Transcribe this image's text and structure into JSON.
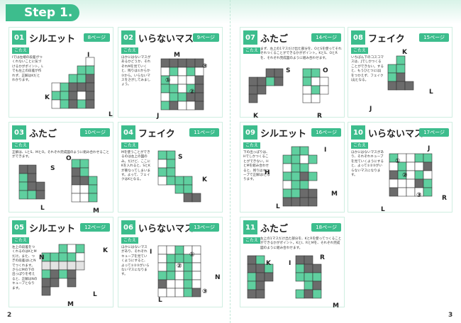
{
  "header": {
    "step": "Step 1."
  },
  "pages": [
    "2",
    "3"
  ],
  "panels": [
    {
      "number": "01",
      "title": "シルエット",
      "page": "8ページ",
      "tag": "こたえ",
      "text": "Iでは左端の段差がつくれないことに気づけるかがポイント。Lでも左上の段差が作れず、正解はKだとわかります。",
      "labels": [
        "I",
        "K",
        "L"
      ]
    },
    {
      "number": "02",
      "title": "いらないマス",
      "page": "9ページ",
      "tag": "こたえ",
      "text": "ほかにはないマスがあるかどうか、それぞれMを見ていくと、残りは①からか③から。いらないマスをさがしてみましょう。",
      "labels": [
        "M",
        "①",
        "③",
        "②",
        "J"
      ]
    },
    {
      "number": "03",
      "title": "ふたご",
      "page": "10ページ",
      "tag": "こたえ",
      "text": "正解は、LとS、MとO。それぞれ完成図のように組み合わせることができます。",
      "labels": [
        "S",
        "O",
        "L",
        "M"
      ]
    },
    {
      "number": "04",
      "title": "フェイク",
      "page": "11ページ",
      "tag": "こたえ",
      "text": "Mを使うことができるのは左上の図のみ。だけど、ここにKを入れると、SとKが重なってしまいます。よって、フェイクはKとなる。",
      "labels": [
        "S",
        "K"
      ]
    },
    {
      "number": "05",
      "title": "シルエット",
      "page": "12ページ",
      "tag": "こたえ",
      "text": "左上の段差をつくれるのはKとMだけ。また、つぎの段差はLとNでつくれます。さらにMの下の出っぱりを考えると、正解はNのキューブとなります。",
      "labels": [
        "N",
        "K",
        "L",
        "M"
      ]
    },
    {
      "number": "06",
      "title": "いらないマス",
      "page": "13ページ",
      "tag": "こたえ",
      "text": "ほかにはないマスがあり、それぞれキューブを見ていくようにすると、よって①②③がいらないマスになります。",
      "labels": [
        "I",
        "①",
        "②",
        "③",
        "N",
        "L"
      ]
    },
    {
      "number": "07",
      "title": "ふたご",
      "page": "14ページ",
      "tag": "こたえ",
      "text": "まず、左上の1マスだけ出た部分を、OとSを使ってそれぞれつくることができるかがポイント。KとS、OとRを、それぞれ完成図のように組み合わせます。",
      "labels": [
        "S",
        "O",
        "K",
        "R"
      ]
    },
    {
      "number": "08",
      "title": "フェイク",
      "page": "15ページ",
      "tag": "こたえ",
      "text": "いちばん下のコスコマスは、Jでしかつくることができない。すると、もうひとつにはJをつかえず、フェイクはJとなる。",
      "labels": [
        "K",
        "L",
        "J"
      ]
    },
    {
      "number": "09",
      "title": "シルエット",
      "page": "16ページ",
      "tag": "こたえ",
      "text": "下の出っぱりは、Hでしかつくることができない。H とMを組み合わせると、残りはキューブで正解はIとなります。",
      "labels": [
        "I",
        "H",
        "M",
        "L"
      ]
    },
    {
      "number": "10",
      "title": "いらないマス",
      "page": "17ページ",
      "tag": "こたえ",
      "text": "ほかにはないマスがあり、それぞれキューブを見ていくようにすると、よって①②③がいらないマスになります。",
      "labels": [
        "J",
        "①",
        "②",
        "③",
        "R",
        "L"
      ]
    },
    {
      "number": "11",
      "title": "ふたご",
      "page": "18ページ",
      "tag": "こたえ",
      "text": "左上の1マスだけ出た部分を、KとRを使ってつくることができるかがポイント。KとI、RとMを、それぞれ完成図のように組み合わせます。",
      "labels": [
        "K",
        "I",
        "R",
        "M"
      ]
    }
  ]
}
